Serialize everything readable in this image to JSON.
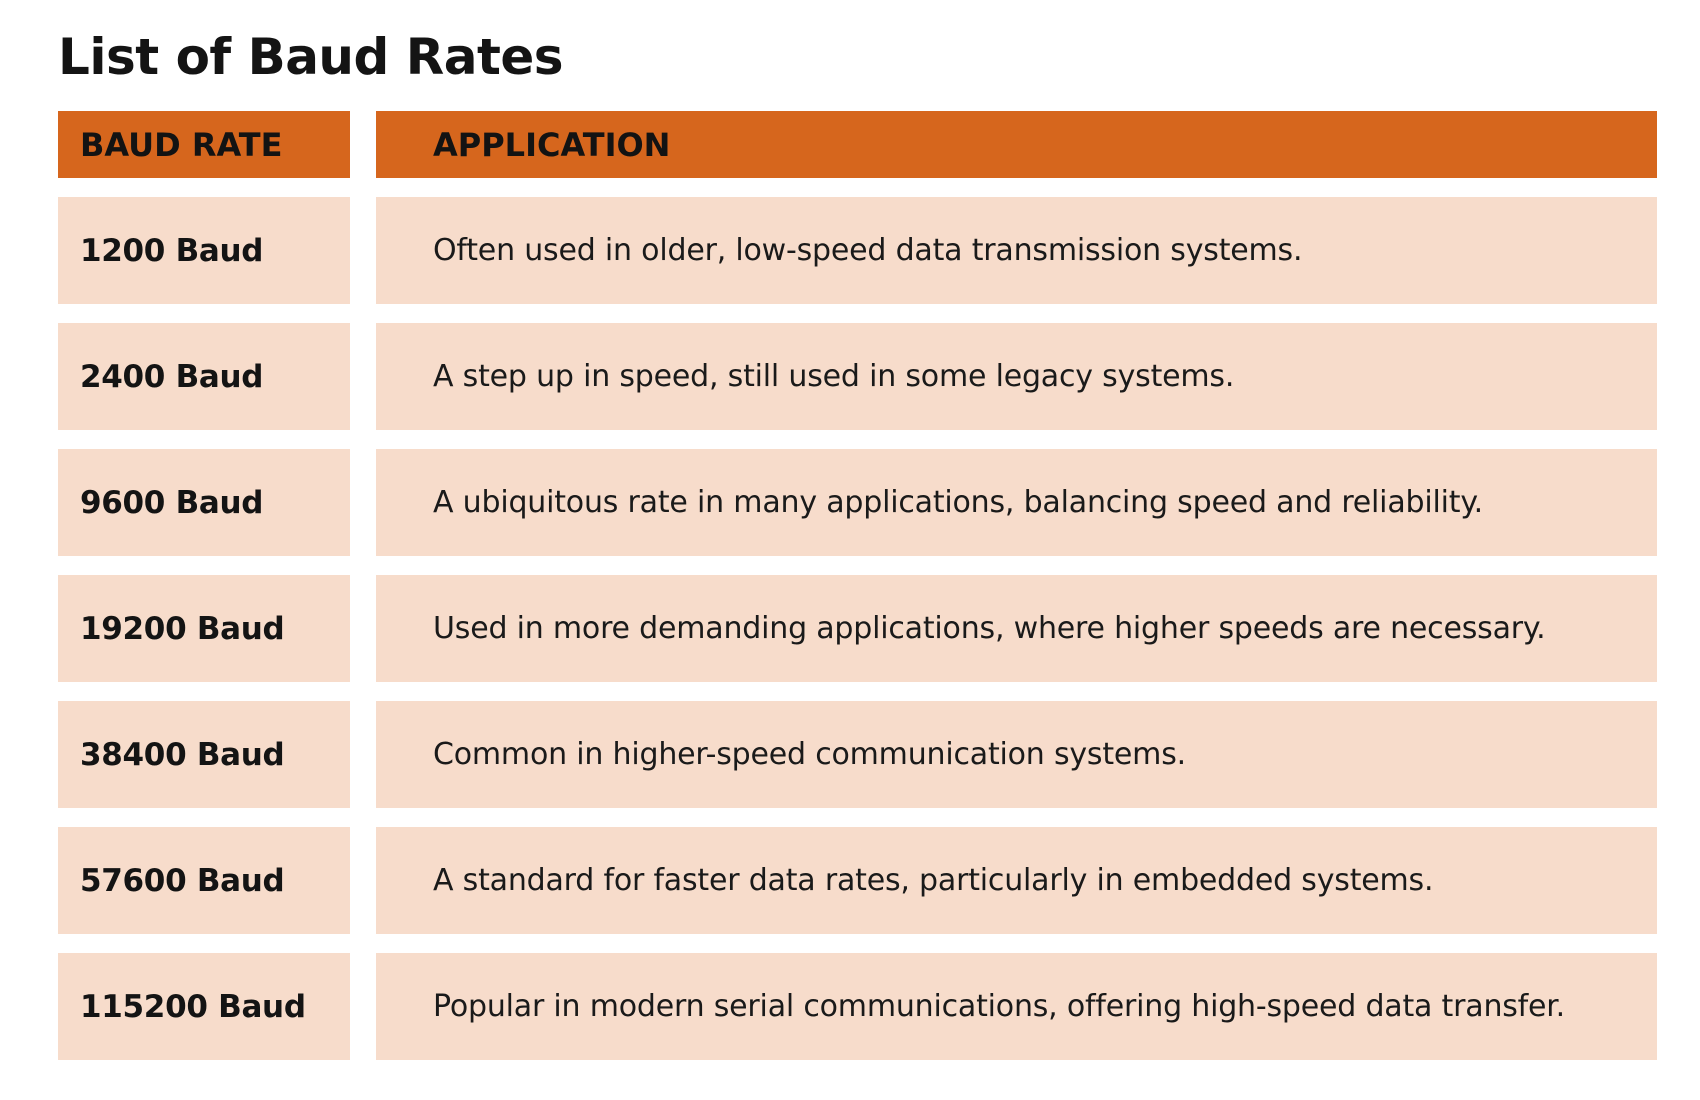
{
  "page": {
    "title": "List of Baud Rates"
  },
  "colors": {
    "header_bg": "#D6661D",
    "row_bg": "#F7DCCB",
    "text": "#141414",
    "page_bg": "#FFFFFF"
  },
  "table": {
    "columns": {
      "rate": "BAUD RATE",
      "application": "APPLICATION"
    },
    "rows": [
      {
        "rate": "1200 Baud",
        "application": "Often used in older, low-speed data transmission systems."
      },
      {
        "rate": "2400 Baud",
        "application": "A step up in speed, still used in some legacy systems."
      },
      {
        "rate": "9600 Baud",
        "application": "A ubiquitous rate in many applications, balancing speed and reliability."
      },
      {
        "rate": "19200 Baud",
        "application": "Used in more demanding applications, where higher speeds are necessary."
      },
      {
        "rate": "38400 Baud",
        "application": "Common in higher-speed communication systems."
      },
      {
        "rate": "57600 Baud",
        "application": "A standard for faster data rates, particularly in embedded systems."
      },
      {
        "rate": "115200 Baud",
        "application": "Popular in modern serial communications, offering high-speed data transfer."
      }
    ]
  }
}
